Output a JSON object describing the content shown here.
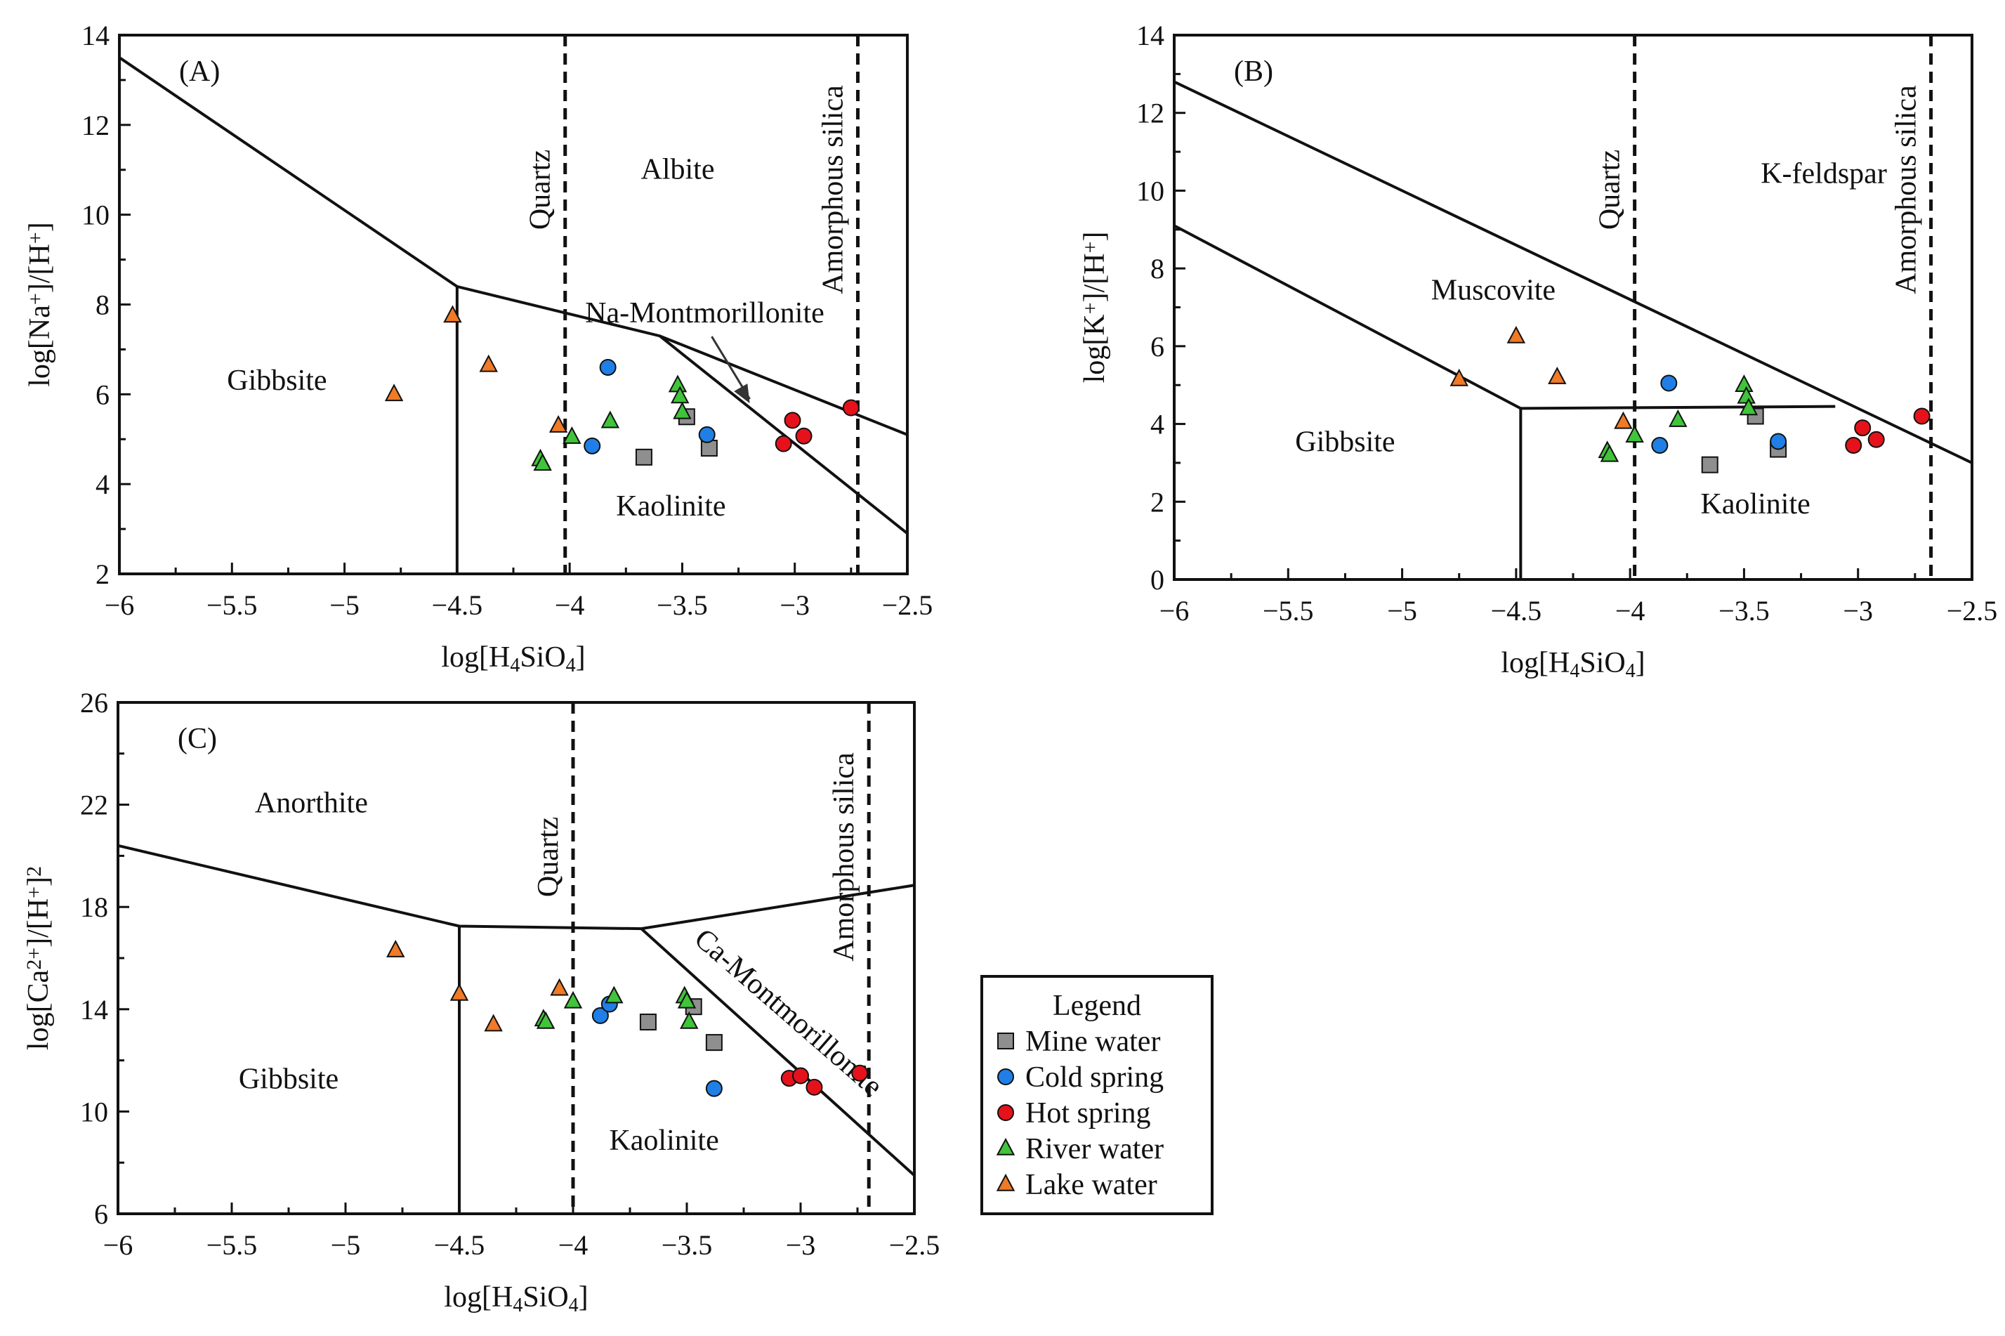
{
  "legend": {
    "title": "Legend",
    "items": [
      {
        "key": "mine",
        "label": "Mine water",
        "marker": "square",
        "color": "#8f8f8f"
      },
      {
        "key": "cold",
        "label": "Cold spring",
        "marker": "circle",
        "color": "#1f7fe6"
      },
      {
        "key": "hot",
        "label": "Hot spring",
        "marker": "circle",
        "color": "#e5121b"
      },
      {
        "key": "river",
        "label": "River water",
        "marker": "triangle",
        "color": "#3fc43a"
      },
      {
        "key": "lake",
        "label": "Lake water",
        "marker": "triangle",
        "color": "#f07a26"
      }
    ]
  },
  "chart_data": [
    {
      "type": "scatter",
      "panel_label": "(A)",
      "xlabel": "log[H4SiO4]",
      "ylabel": "log[Na+]/[H+]",
      "xlim": [
        -6,
        -2.5
      ],
      "ylim": [
        2,
        14
      ],
      "xticks": [
        -6,
        -5.5,
        -5,
        -4.5,
        -4,
        -3.5,
        -3,
        -2.5
      ],
      "xtick_labels": [
        "−6",
        "−5.5",
        "−5",
        "−4.5",
        "−4",
        "−3.5",
        "−3",
        "−2.5"
      ],
      "yticks": [
        2,
        4,
        6,
        8,
        10,
        12,
        14
      ],
      "ytick_labels": [
        "2",
        "4",
        "6",
        "8",
        "10",
        "12",
        "14"
      ],
      "boundaries": [
        {
          "points": [
            [
              -6,
              13.5
            ],
            [
              -4.5,
              8.4
            ],
            [
              -3.6,
              7.3
            ],
            [
              -2.5,
              5.1
            ]
          ]
        },
        {
          "points": [
            [
              -4.5,
              8.4
            ],
            [
              -4.5,
              2
            ]
          ]
        },
        {
          "points": [
            [
              -3.6,
              7.3
            ],
            [
              -2.5,
              2.9
            ]
          ]
        }
      ],
      "dashed_lines": [
        {
          "x": -4.02,
          "label": "Quartz"
        },
        {
          "x": -2.72,
          "label": "Amorphous silica"
        }
      ],
      "regions": [
        {
          "label": "Albite",
          "x": -3.52,
          "y": 10.8
        },
        {
          "label": "Gibbsite",
          "x": -5.3,
          "y": 6.1
        },
        {
          "label": "Kaolinite",
          "x": -3.55,
          "y": 3.3
        }
      ],
      "annotations": [
        {
          "label": "Na-Montmorillonite",
          "x": -3.4,
          "y": 7.6,
          "arrow_to": [
            -3.2,
            5.8
          ]
        }
      ],
      "series": [
        {
          "key": "mine",
          "name": "Mine water",
          "points": [
            [
              -3.67,
              4.6
            ],
            [
              -3.48,
              5.5
            ],
            [
              -3.38,
              4.8
            ]
          ]
        },
        {
          "key": "cold",
          "name": "Cold spring",
          "points": [
            [
              -3.83,
              6.6
            ],
            [
              -3.9,
              4.85
            ],
            [
              -3.39,
              5.1
            ]
          ]
        },
        {
          "key": "hot",
          "name": "Hot spring",
          "points": [
            [
              -3.05,
              4.9
            ],
            [
              -3.01,
              5.42
            ],
            [
              -2.96,
              5.07
            ],
            [
              -2.75,
              5.7
            ]
          ]
        },
        {
          "key": "river",
          "name": "River water",
          "points": [
            [
              -4.13,
              4.55
            ],
            [
              -4.12,
              4.45
            ],
            [
              -3.99,
              5.05
            ],
            [
              -3.82,
              5.4
            ],
            [
              -3.52,
              6.2
            ],
            [
              -3.51,
              5.95
            ],
            [
              -3.5,
              5.6
            ]
          ]
        },
        {
          "key": "lake",
          "name": "Lake water",
          "points": [
            [
              -4.78,
              6.0
            ],
            [
              -4.52,
              7.75
            ],
            [
              -4.36,
              6.65
            ],
            [
              -4.05,
              5.3
            ]
          ]
        }
      ]
    },
    {
      "type": "scatter",
      "panel_label": "(B)",
      "xlabel": "log[H4SiO4]",
      "ylabel": "log[K+]/[H+]",
      "xlim": [
        -6,
        -2.5
      ],
      "ylim": [
        0,
        14
      ],
      "xticks": [
        -6,
        -5.5,
        -5,
        -4.5,
        -4,
        -3.5,
        -3,
        -2.5
      ],
      "xtick_labels": [
        "−6",
        "−5.5",
        "−5",
        "−4.5",
        "−4",
        "−3.5",
        "−3",
        "−2.5"
      ],
      "yticks": [
        0,
        2,
        4,
        6,
        8,
        10,
        12,
        14
      ],
      "ytick_labels": [
        "0",
        "2",
        "4",
        "6",
        "8",
        "10",
        "12",
        "14"
      ],
      "boundaries": [
        {
          "points": [
            [
              -6,
              12.8
            ],
            [
              -2.5,
              3.0
            ]
          ]
        },
        {
          "points": [
            [
              -6,
              9.1
            ],
            [
              -4.48,
              4.4
            ],
            [
              -3.1,
              4.45
            ]
          ]
        },
        {
          "points": [
            [
              -4.48,
              4.4
            ],
            [
              -4.48,
              0
            ]
          ]
        }
      ],
      "dashed_lines": [
        {
          "x": -3.98,
          "label": "Quartz"
        },
        {
          "x": -2.68,
          "label": "Amorphous silica"
        }
      ],
      "regions": [
        {
          "label": "K-feldspar",
          "x": -3.15,
          "y": 10.2
        },
        {
          "label": "Muscovite",
          "x": -4.6,
          "y": 7.2
        },
        {
          "label": "Gibbsite",
          "x": -5.25,
          "y": 3.3
        },
        {
          "label": "Kaolinite",
          "x": -3.45,
          "y": 1.7
        }
      ],
      "annotations": [],
      "series": [
        {
          "key": "mine",
          "name": "Mine water",
          "points": [
            [
              -3.65,
              2.95
            ],
            [
              -3.45,
              4.2
            ],
            [
              -3.35,
              3.35
            ]
          ]
        },
        {
          "key": "cold",
          "name": "Cold spring",
          "points": [
            [
              -3.87,
              3.45
            ],
            [
              -3.83,
              5.05
            ],
            [
              -3.35,
              3.55
            ]
          ]
        },
        {
          "key": "hot",
          "name": "Hot spring",
          "points": [
            [
              -3.02,
              3.45
            ],
            [
              -2.98,
              3.9
            ],
            [
              -2.92,
              3.6
            ],
            [
              -2.72,
              4.2
            ]
          ]
        },
        {
          "key": "river",
          "name": "River water",
          "points": [
            [
              -4.1,
              3.3
            ],
            [
              -4.09,
              3.2
            ],
            [
              -3.98,
              3.7
            ],
            [
              -3.79,
              4.1
            ],
            [
              -3.5,
              5.0
            ],
            [
              -3.49,
              4.7
            ],
            [
              -3.48,
              4.4
            ]
          ]
        },
        {
          "key": "lake",
          "name": "Lake water",
          "points": [
            [
              -4.75,
              5.15
            ],
            [
              -4.5,
              6.25
            ],
            [
              -4.32,
              5.2
            ],
            [
              -4.03,
              4.05
            ]
          ]
        }
      ]
    },
    {
      "type": "scatter",
      "panel_label": "(C)",
      "xlabel": "log[H4SiO4]",
      "ylabel": "log[Ca2+]/[H+]2",
      "xlim": [
        -6,
        -2.5
      ],
      "ylim": [
        6,
        26
      ],
      "xticks": [
        -6,
        -5.5,
        -5,
        -4.5,
        -4,
        -3.5,
        -3,
        -2.5
      ],
      "xtick_labels": [
        "−6",
        "−5.5",
        "−5",
        "−4.5",
        "−4",
        "−3.5",
        "−3",
        "−2.5"
      ],
      "yticks": [
        6,
        10,
        14,
        18,
        22,
        26
      ],
      "ytick_labels": [
        "6",
        "10",
        "14",
        "18",
        "22",
        "26"
      ],
      "boundaries": [
        {
          "points": [
            [
              -6,
              20.4
            ],
            [
              -4.5,
              17.25
            ],
            [
              -3.7,
              17.15
            ],
            [
              -2.5,
              18.85
            ]
          ]
        },
        {
          "points": [
            [
              -4.5,
              17.25
            ],
            [
              -4.5,
              6
            ]
          ]
        },
        {
          "points": [
            [
              -3.7,
              17.15
            ],
            [
              -2.5,
              7.5
            ]
          ]
        }
      ],
      "dashed_lines": [
        {
          "x": -4.0,
          "label": "Quartz"
        },
        {
          "x": -2.7,
          "label": "Amorphous silica"
        }
      ],
      "regions": [
        {
          "label": "Anorthite",
          "x": -5.15,
          "y": 21.7
        },
        {
          "label": "Gibbsite",
          "x": -5.25,
          "y": 10.9
        },
        {
          "label": "Kaolinite",
          "x": -3.6,
          "y": 8.5
        }
      ],
      "annotations": [
        {
          "label": "Ca-Montmorillonite",
          "x": -3.08,
          "y": 13.6,
          "rotate": 41
        }
      ],
      "series": [
        {
          "key": "mine",
          "name": "Mine water",
          "points": [
            [
              -3.67,
              13.5
            ],
            [
              -3.47,
              14.1
            ],
            [
              -3.38,
              12.7
            ]
          ]
        },
        {
          "key": "cold",
          "name": "Cold spring",
          "points": [
            [
              -3.88,
              13.75
            ],
            [
              -3.84,
              14.2
            ],
            [
              -3.38,
              10.9
            ]
          ]
        },
        {
          "key": "hot",
          "name": "Hot spring",
          "points": [
            [
              -3.05,
              11.3
            ],
            [
              -3.0,
              11.4
            ],
            [
              -2.94,
              10.95
            ],
            [
              -2.74,
              11.5
            ]
          ]
        },
        {
          "key": "river",
          "name": "River water",
          "points": [
            [
              -4.13,
              13.6
            ],
            [
              -4.12,
              13.5
            ],
            [
              -4.0,
              14.3
            ],
            [
              -3.82,
              14.5
            ],
            [
              -3.51,
              14.5
            ],
            [
              -3.5,
              14.3
            ],
            [
              -3.49,
              13.5
            ]
          ]
        },
        {
          "key": "lake",
          "name": "Lake water",
          "points": [
            [
              -4.78,
              16.3
            ],
            [
              -4.5,
              14.6
            ],
            [
              -4.35,
              13.4
            ],
            [
              -4.06,
              14.8
            ]
          ]
        }
      ]
    }
  ]
}
